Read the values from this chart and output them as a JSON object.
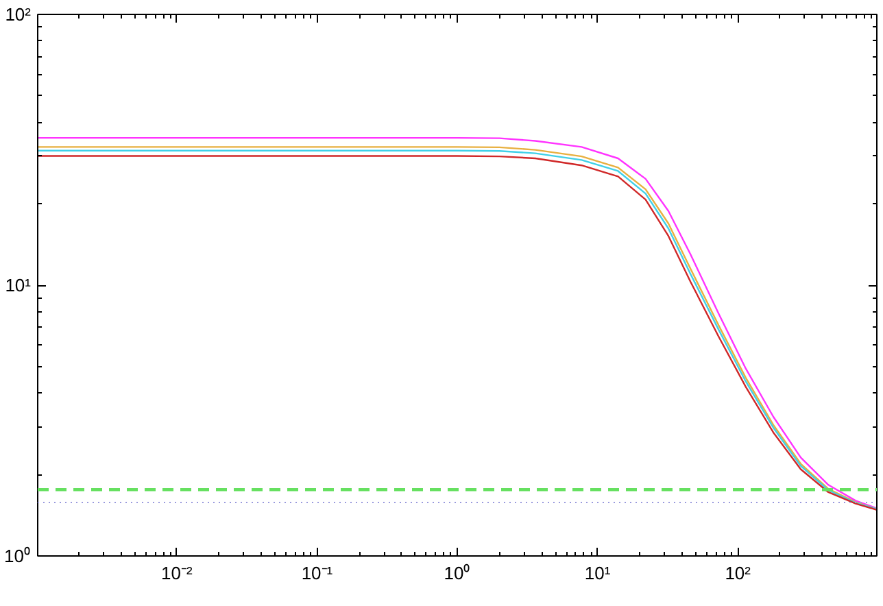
{
  "chart_data": {
    "type": "line",
    "log": "xy",
    "grid": false,
    "line_style": "solid",
    "marker": "none",
    "xlim": [
      0.00102,
      980
    ],
    "ylim": [
      1,
      100
    ],
    "xticks": [
      {
        "value": 0.01,
        "label": "10⁻²"
      },
      {
        "value": 0.1,
        "label": "10⁻¹"
      },
      {
        "value": 1,
        "label": "10⁰"
      },
      {
        "value": 10,
        "label": "10¹"
      },
      {
        "value": 100,
        "label": "10²"
      }
    ],
    "yticks": [
      {
        "value": 1,
        "label": "10⁰"
      },
      {
        "value": 10,
        "label": "10¹"
      },
      {
        "value": 100,
        "label": "10²"
      }
    ],
    "x": [
      0.00102,
      0.01,
      0.1,
      1,
      2,
      3.6,
      7.7,
      14,
      22,
      32,
      46,
      73,
      114,
      179,
      281,
      442,
      692,
      980
    ],
    "series": [
      {
        "color": "#ff33ff",
        "values": [
          35,
          35,
          35,
          35,
          34.9,
          34.1,
          32.4,
          29.4,
          24.7,
          18.8,
          13,
          7.85,
          4.92,
          3.27,
          2.31,
          1.83,
          1.6,
          1.5
        ]
      },
      {
        "color": "#e8b040",
        "values": [
          32.4,
          32.4,
          32.4,
          32.4,
          32.3,
          31.6,
          29.9,
          27.2,
          22.6,
          16.9,
          11.5,
          7.11,
          4.55,
          3.05,
          2.19,
          1.77,
          1.58,
          1.49
        ]
      },
      {
        "color": "#40d0e8",
        "values": [
          31.4,
          31.4,
          31.4,
          31.4,
          31.3,
          30.7,
          29,
          26.4,
          21.8,
          16.2,
          11,
          6.85,
          4.41,
          2.98,
          2.15,
          1.75,
          1.57,
          1.49
        ]
      },
      {
        "color": "#d02828",
        "values": [
          30,
          30,
          30,
          30,
          29.9,
          29.4,
          27.7,
          25.2,
          20.7,
          15.2,
          10.3,
          6.46,
          4.21,
          2.86,
          2.09,
          1.72,
          1.56,
          1.48
        ]
      }
    ],
    "ref_lines": [
      {
        "axis": "y",
        "value": 1.757,
        "color": "#66e060",
        "line_style": "dashed"
      },
      {
        "axis": "y",
        "value": 1.575,
        "color": "#9999dd",
        "line_style": "dotted"
      }
    ]
  }
}
